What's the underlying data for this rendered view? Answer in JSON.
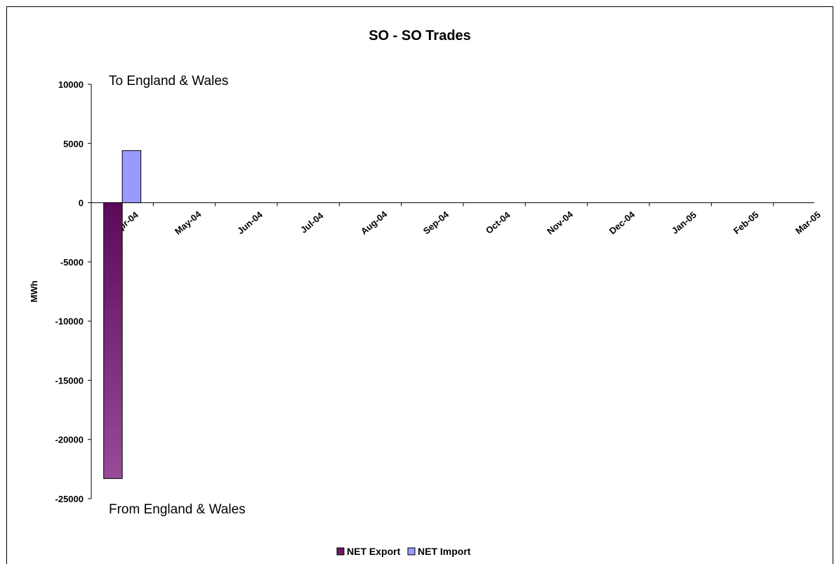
{
  "chart_data": {
    "type": "bar",
    "title": "SO - SO Trades",
    "ylabel": "MWh",
    "xlabel": "",
    "categories": [
      "Apr-04",
      "May-04",
      "Jun-04",
      "Jul-04",
      "Aug-04",
      "Sep-04",
      "Oct-04",
      "Nov-04",
      "Dec-04",
      "Jan-05",
      "Feb-05",
      "Mar-05"
    ],
    "series": [
      {
        "name": "NET Export",
        "values": [
          -23300,
          0,
          0,
          0,
          0,
          0,
          0,
          0,
          0,
          0,
          0,
          0
        ],
        "color": "#7b2a73"
      },
      {
        "name": "NET Import",
        "values": [
          4400,
          0,
          0,
          0,
          0,
          0,
          0,
          0,
          0,
          0,
          0,
          0
        ],
        "color": "#9999ff"
      }
    ],
    "ylim": [
      -25000,
      10000
    ],
    "yticks": [
      "10000",
      "5000",
      "0",
      "-5000",
      "-10000",
      "-15000",
      "-20000",
      "-25000"
    ],
    "annotations": {
      "top": "To England & Wales",
      "bottom": "From England & Wales"
    },
    "legend_position": "bottom-center",
    "grid": false
  }
}
